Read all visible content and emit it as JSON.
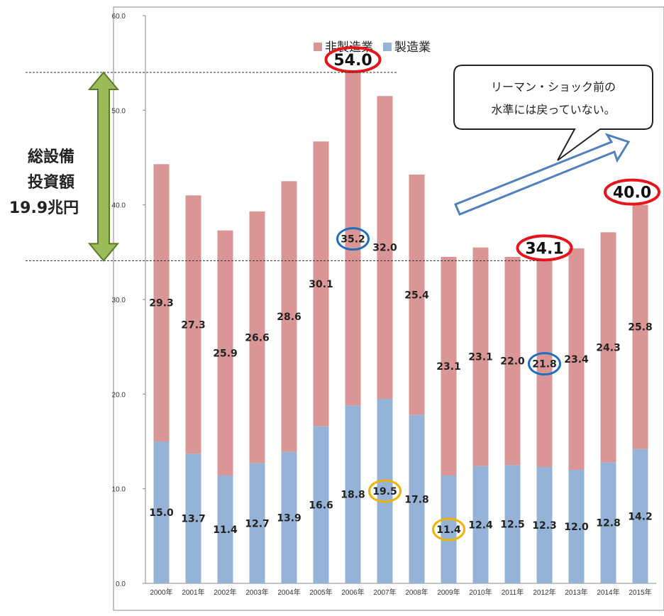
{
  "chart_data": {
    "type": "bar",
    "stacked": true,
    "ylim": [
      0,
      60
    ],
    "yticks": [
      "0.0",
      "10.0",
      "20.0",
      "30.0",
      "40.0",
      "50.0",
      "60.0"
    ],
    "categories": [
      "2000年",
      "2001年",
      "2002年",
      "2003年",
      "2004年",
      "2005年",
      "2006年",
      "2007年",
      "2008年",
      "2009年",
      "2010年",
      "2011年",
      "2012年",
      "2013年",
      "2014年",
      "2015年"
    ],
    "series": [
      {
        "name": "製造業",
        "color": "#95b3d7",
        "values": [
          15.0,
          13.7,
          11.4,
          12.7,
          13.9,
          16.6,
          18.8,
          19.5,
          17.8,
          11.4,
          12.4,
          12.5,
          12.3,
          12.0,
          12.8,
          14.2
        ],
        "labels": [
          "15.0",
          "13.7",
          "11.4",
          "12.7",
          "13.9",
          "16.6",
          "18.8",
          "19.5",
          "17.8",
          "11.4",
          "12.4",
          "12.5",
          "12.3",
          "12.0",
          "12.8",
          "14.2"
        ]
      },
      {
        "name": "非製造業",
        "color": "#d99694",
        "values": [
          29.3,
          27.3,
          25.9,
          26.6,
          28.6,
          30.1,
          35.2,
          32.0,
          25.4,
          23.1,
          23.1,
          22.0,
          21.8,
          23.4,
          24.3,
          25.8
        ],
        "labels": [
          "29.3",
          "27.3",
          "25.9",
          "26.6",
          "28.6",
          "30.1",
          "35.2",
          "32.0",
          "25.4",
          "23.1",
          "23.1",
          "22.0",
          "21.8",
          "23.4",
          "24.3",
          "25.8"
        ]
      }
    ],
    "legend": {
      "position": "top",
      "items": [
        "非製造業",
        "製造業"
      ]
    },
    "totals_highlighted": [
      {
        "category_index": 6,
        "label": "54.0"
      },
      {
        "category_index": 12,
        "label": "34.1"
      },
      {
        "category_index": 15,
        "label": "40.0"
      }
    ],
    "circled_labels": [
      {
        "series": "非製造業",
        "category_index": 6,
        "color": "#1f6fbf"
      },
      {
        "series": "非製造業",
        "category_index": 12,
        "color": "#1f6fbf"
      },
      {
        "series": "製造業",
        "category_index": 7,
        "color": "#f2b200"
      },
      {
        "series": "製造業",
        "category_index": 9,
        "color": "#f2b200"
      }
    ],
    "annotations": {
      "side_label_lines": [
        "総設備",
        "投資額",
        "19.9兆円"
      ],
      "callout_lines": [
        "リーマン・ショック前の",
        "水準には戻っていない。"
      ]
    }
  }
}
